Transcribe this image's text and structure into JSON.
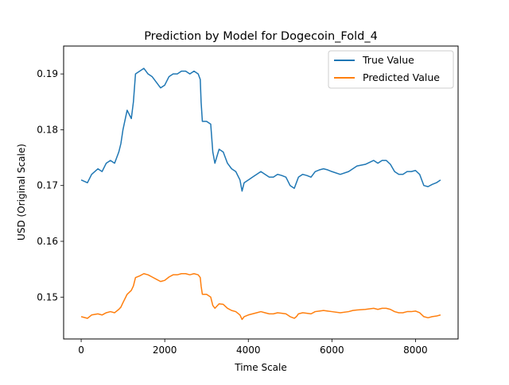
{
  "chart_data": {
    "type": "line",
    "title": "Prediction by Model for Dogecoin_Fold_4",
    "xlabel": "Time Scale",
    "ylabel": "USD (Original Scale)",
    "xlim": [
      -420,
      9020
    ],
    "ylim": [
      0.1425,
      0.195
    ],
    "xticks": [
      0,
      2000,
      4000,
      6000,
      8000
    ],
    "xtick_labels": [
      "0",
      "2000",
      "4000",
      "6000",
      "8000"
    ],
    "yticks": [
      0.15,
      0.16,
      0.17,
      0.18,
      0.19
    ],
    "ytick_labels": [
      "0.15",
      "0.16",
      "0.17",
      "0.18",
      "0.19"
    ],
    "grid": false,
    "legend_position": "top-right",
    "series": [
      {
        "name": "True Value",
        "color": "#1f77b4",
        "x": [
          0,
          150,
          250,
          400,
          500,
          600,
          700,
          800,
          900,
          950,
          1000,
          1100,
          1200,
          1250,
          1300,
          1400,
          1500,
          1600,
          1700,
          1800,
          1900,
          2000,
          2100,
          2200,
          2300,
          2400,
          2500,
          2600,
          2700,
          2800,
          2850,
          2870,
          2900,
          3000,
          3100,
          3150,
          3200,
          3300,
          3400,
          3500,
          3600,
          3700,
          3800,
          3850,
          3900,
          4000,
          4100,
          4200,
          4300,
          4400,
          4500,
          4600,
          4700,
          4800,
          4900,
          5000,
          5100,
          5150,
          5200,
          5300,
          5400,
          5500,
          5600,
          5700,
          5800,
          5900,
          6000,
          6200,
          6400,
          6500,
          6600,
          6800,
          7000,
          7100,
          7200,
          7300,
          7400,
          7500,
          7600,
          7700,
          7800,
          7900,
          8000,
          8100,
          8200,
          8300,
          8400,
          8500,
          8600
        ],
        "values": [
          0.171,
          0.1705,
          0.172,
          0.173,
          0.1725,
          0.174,
          0.1745,
          0.174,
          0.176,
          0.1775,
          0.18,
          0.1835,
          0.182,
          0.185,
          0.19,
          0.1905,
          0.191,
          0.19,
          0.1895,
          0.1885,
          0.1875,
          0.188,
          0.1895,
          0.19,
          0.19,
          0.1905,
          0.1905,
          0.19,
          0.1905,
          0.19,
          0.189,
          0.185,
          0.1815,
          0.1815,
          0.181,
          0.176,
          0.174,
          0.1765,
          0.176,
          0.174,
          0.173,
          0.1725,
          0.171,
          0.169,
          0.1705,
          0.171,
          0.1715,
          0.172,
          0.1725,
          0.172,
          0.1715,
          0.1715,
          0.172,
          0.1718,
          0.1715,
          0.17,
          0.1695,
          0.1705,
          0.1715,
          0.172,
          0.1718,
          0.1715,
          0.1725,
          0.1728,
          0.173,
          0.1728,
          0.1725,
          0.172,
          0.1725,
          0.173,
          0.1735,
          0.1738,
          0.1745,
          0.174,
          0.1745,
          0.1745,
          0.1738,
          0.1725,
          0.172,
          0.172,
          0.1725,
          0.1725,
          0.1727,
          0.172,
          0.17,
          0.1698,
          0.1702,
          0.1705,
          0.171
        ]
      },
      {
        "name": "Predicted Value",
        "color": "#ff7f0e",
        "x": [
          0,
          150,
          250,
          400,
          500,
          600,
          700,
          800,
          900,
          950,
          1000,
          1100,
          1200,
          1250,
          1300,
          1400,
          1500,
          1600,
          1700,
          1800,
          1900,
          2000,
          2100,
          2200,
          2300,
          2400,
          2500,
          2600,
          2700,
          2800,
          2850,
          2870,
          2900,
          3000,
          3100,
          3150,
          3200,
          3300,
          3400,
          3500,
          3600,
          3700,
          3800,
          3850,
          3900,
          4000,
          4100,
          4200,
          4300,
          4400,
          4500,
          4600,
          4700,
          4800,
          4900,
          5000,
          5100,
          5150,
          5200,
          5300,
          5400,
          5500,
          5600,
          5700,
          5800,
          5900,
          6000,
          6200,
          6400,
          6500,
          6600,
          6800,
          7000,
          7100,
          7200,
          7300,
          7400,
          7500,
          7600,
          7700,
          7800,
          7900,
          8000,
          8100,
          8200,
          8300,
          8400,
          8500,
          8600
        ],
        "values": [
          0.1465,
          0.1462,
          0.1468,
          0.147,
          0.1468,
          0.1472,
          0.1474,
          0.1472,
          0.1478,
          0.1482,
          0.149,
          0.1505,
          0.1512,
          0.152,
          0.1535,
          0.1538,
          0.1542,
          0.154,
          0.1536,
          0.1532,
          0.1528,
          0.153,
          0.1536,
          0.154,
          0.154,
          0.1542,
          0.1542,
          0.154,
          0.1542,
          0.154,
          0.1535,
          0.152,
          0.1505,
          0.1505,
          0.15,
          0.1485,
          0.148,
          0.1488,
          0.1487,
          0.148,
          0.1476,
          0.1474,
          0.1468,
          0.146,
          0.1465,
          0.1468,
          0.147,
          0.1472,
          0.1474,
          0.1472,
          0.147,
          0.147,
          0.1472,
          0.1471,
          0.147,
          0.1465,
          0.1462,
          0.1465,
          0.147,
          0.1472,
          0.1471,
          0.147,
          0.1474,
          0.1475,
          0.1476,
          0.1475,
          0.1474,
          0.1472,
          0.1474,
          0.1476,
          0.1477,
          0.1478,
          0.148,
          0.1478,
          0.148,
          0.148,
          0.1478,
          0.1474,
          0.1472,
          0.1472,
          0.1474,
          0.1474,
          0.1475,
          0.1472,
          0.1465,
          0.1463,
          0.1465,
          0.1466,
          0.1468
        ]
      }
    ]
  }
}
